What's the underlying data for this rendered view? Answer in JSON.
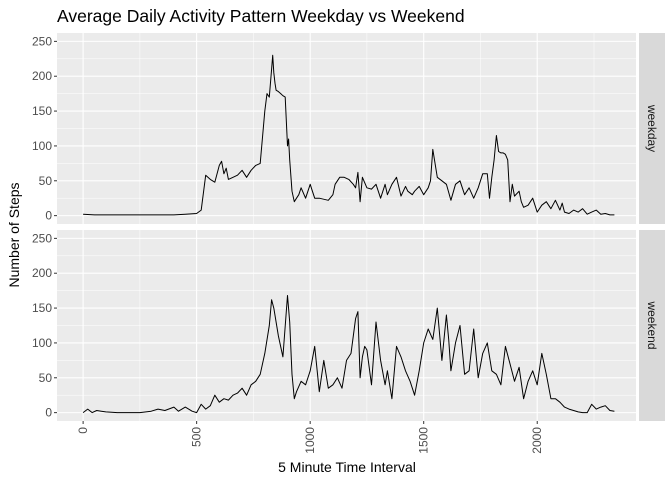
{
  "chart_data": {
    "type": "line",
    "title": "Average Daily Activity Pattern Weekday vs Weekend",
    "xlabel": "5 Minute Time Interval",
    "ylabel": "Number of Steps",
    "xlim": [
      -115,
      2435
    ],
    "ylim": [
      -12,
      262
    ],
    "x_ticks": [
      0,
      500,
      1000,
      1500,
      2000
    ],
    "y_ticks": [
      0,
      50,
      100,
      150,
      200,
      250
    ],
    "grid": true,
    "line_color": "#000000",
    "panel_background": "#ebebeb",
    "strip_background": "#d9d9d9",
    "panels": [
      {
        "name": "weekday",
        "x": [
          0,
          50,
          100,
          200,
          300,
          400,
          450,
          500,
          520,
          540,
          560,
          580,
          600,
          610,
          620,
          630,
          640,
          660,
          680,
          700,
          720,
          740,
          760,
          780,
          800,
          810,
          820,
          830,
          835,
          840,
          845,
          850,
          860,
          870,
          880,
          890,
          900,
          905,
          910,
          920,
          930,
          940,
          950,
          960,
          980,
          1000,
          1010,
          1020,
          1040,
          1080,
          1100,
          1110,
          1130,
          1150,
          1170,
          1190,
          1200,
          1210,
          1220,
          1230,
          1250,
          1270,
          1290,
          1310,
          1330,
          1340,
          1360,
          1380,
          1400,
          1420,
          1430,
          1450,
          1460,
          1480,
          1500,
          1520,
          1530,
          1540,
          1560,
          1580,
          1600,
          1620,
          1640,
          1660,
          1680,
          1700,
          1720,
          1740,
          1760,
          1780,
          1790,
          1800,
          1810,
          1820,
          1830,
          1840,
          1850,
          1860,
          1870,
          1880,
          1890,
          1900,
          1920,
          1930,
          1940,
          1960,
          1980,
          2000,
          2020,
          2040,
          2060,
          2080,
          2100,
          2110,
          2120,
          2140,
          2160,
          2180,
          2200,
          2220,
          2240,
          2260,
          2280,
          2300,
          2320,
          2340
        ],
        "values": [
          2,
          1,
          1,
          1,
          1,
          1,
          2,
          3,
          8,
          58,
          52,
          48,
          72,
          78,
          60,
          68,
          52,
          55,
          58,
          65,
          55,
          65,
          72,
          75,
          150,
          175,
          170,
          210,
          230,
          205,
          190,
          180,
          178,
          175,
          172,
          170,
          100,
          110,
          80,
          35,
          20,
          25,
          30,
          40,
          25,
          45,
          35,
          25,
          25,
          22,
          30,
          45,
          55,
          55,
          52,
          45,
          40,
          62,
          20,
          55,
          40,
          38,
          45,
          25,
          45,
          30,
          45,
          55,
          28,
          42,
          35,
          30,
          35,
          42,
          30,
          40,
          50,
          95,
          55,
          50,
          45,
          22,
          45,
          50,
          30,
          40,
          25,
          40,
          60,
          60,
          25,
          55,
          80,
          115,
          92,
          90,
          90,
          88,
          80,
          20,
          45,
          28,
          35,
          20,
          12,
          15,
          25,
          5,
          15,
          20,
          10,
          22,
          8,
          18,
          5,
          3,
          8,
          5,
          10,
          2,
          5,
          8,
          2,
          3,
          1,
          1
        ]
      },
      {
        "name": "weekend",
        "x": [
          0,
          20,
          40,
          60,
          80,
          100,
          150,
          200,
          250,
          300,
          330,
          360,
          400,
          420,
          450,
          480,
          500,
          520,
          540,
          560,
          580,
          600,
          620,
          640,
          660,
          680,
          700,
          720,
          740,
          760,
          780,
          800,
          820,
          830,
          840,
          860,
          880,
          900,
          910,
          920,
          930,
          940,
          960,
          980,
          1000,
          1020,
          1040,
          1060,
          1080,
          1100,
          1120,
          1140,
          1160,
          1180,
          1200,
          1210,
          1220,
          1230,
          1240,
          1250,
          1270,
          1290,
          1310,
          1330,
          1340,
          1360,
          1380,
          1400,
          1420,
          1440,
          1460,
          1480,
          1500,
          1520,
          1540,
          1560,
          1580,
          1600,
          1610,
          1620,
          1640,
          1660,
          1680,
          1700,
          1720,
          1740,
          1760,
          1780,
          1800,
          1820,
          1840,
          1860,
          1880,
          1900,
          1920,
          1940,
          1960,
          1980,
          2000,
          2020,
          2040,
          2060,
          2080,
          2100,
          2120,
          2140,
          2160,
          2180,
          2200,
          2220,
          2240,
          2260,
          2280,
          2300,
          2320,
          2340
        ],
        "values": [
          0,
          5,
          0,
          3,
          2,
          1,
          0,
          0,
          0,
          2,
          5,
          3,
          8,
          2,
          8,
          2,
          0,
          12,
          5,
          10,
          25,
          15,
          20,
          18,
          25,
          28,
          35,
          25,
          40,
          45,
          55,
          85,
          125,
          162,
          150,
          110,
          80,
          168,
          130,
          55,
          20,
          30,
          45,
          40,
          60,
          95,
          30,
          75,
          35,
          40,
          50,
          35,
          75,
          85,
          135,
          145,
          50,
          80,
          95,
          90,
          40,
          130,
          75,
          40,
          60,
          20,
          95,
          80,
          60,
          45,
          25,
          60,
          100,
          120,
          105,
          150,
          75,
          140,
          105,
          60,
          100,
          125,
          55,
          60,
          120,
          50,
          85,
          100,
          60,
          55,
          40,
          95,
          70,
          45,
          65,
          20,
          45,
          60,
          40,
          85,
          55,
          20,
          20,
          15,
          8,
          5,
          3,
          1,
          0,
          0,
          12,
          5,
          8,
          10,
          3,
          2
        ]
      }
    ]
  }
}
